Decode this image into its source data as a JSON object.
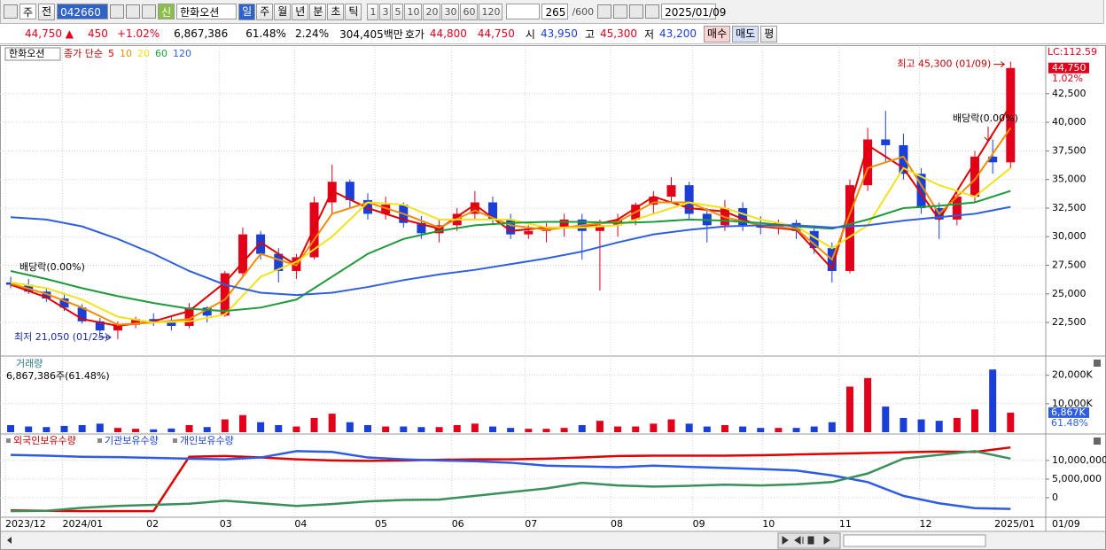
{
  "toolbar": {
    "period_type": "주",
    "prev": "전",
    "code": "042660",
    "new_tag": "신",
    "name": "한화오션",
    "periods": [
      "일",
      "주",
      "월",
      "년",
      "분",
      "초",
      "틱"
    ],
    "intervals": [
      "1",
      "3",
      "5",
      "10",
      "20",
      "30",
      "60",
      "120"
    ],
    "count": "265",
    "max": "/600",
    "date": "2025/01/09"
  },
  "quote_bar": {
    "price": "44,750 ▲",
    "change": "450",
    "change_rate": "+1.02%",
    "volume": "6,867,386",
    "volume_ratio": "61.48%",
    "turnover": "2.24%",
    "amount": "304,405백만",
    "ask_label": "호가",
    "ask": "44,800",
    "bid": "44,750",
    "open_label": "시",
    "open": "43,950",
    "high_label": "고",
    "high": "45,300",
    "low_label": "저",
    "low": "43,200",
    "buy": "매수",
    "sell": "매도",
    "avg": "평"
  },
  "chart_data": [
    {
      "type": "candlestick",
      "name": "한화오션",
      "ma_label": "종가 단순",
      "lc_label": "LC:112.59",
      "last_label": "44,750",
      "last_change": "1.02%",
      "annotations": {
        "high": "최고 45,300 (01/09)",
        "low": "최저 21,050 (01/25)",
        "dividend": [
          "배당락(0.00%)",
          "배당락(0.00%)"
        ]
      },
      "open": [
        26000,
        25800,
        25200,
        24600,
        23800,
        22600,
        21800,
        22300,
        22800,
        22500,
        22200,
        23800,
        23100,
        26800,
        30200,
        28500,
        27000,
        28200,
        33000,
        34800,
        33200,
        32000,
        32800,
        31200,
        30300,
        31000,
        32000,
        33000,
        31500,
        30200,
        30500,
        30800,
        31500,
        30500,
        31000,
        31500,
        32800,
        33500,
        34500,
        32000,
        31000,
        32500,
        31000,
        30800,
        31200,
        30500,
        29000,
        27000,
        34500,
        38500,
        38000,
        35500,
        32500,
        31500,
        33500,
        37000,
        36500
      ],
      "high": [
        26500,
        26300,
        25500,
        25100,
        24100,
        22900,
        22600,
        23000,
        23300,
        23000,
        24200,
        23900,
        27000,
        30800,
        30500,
        29000,
        28500,
        33500,
        36300,
        35000,
        33800,
        33500,
        33000,
        31800,
        31500,
        32500,
        34000,
        33500,
        32000,
        31000,
        31200,
        32000,
        32000,
        31500,
        32000,
        33000,
        34000,
        35200,
        34800,
        32500,
        33200,
        33000,
        31800,
        31500,
        31500,
        31000,
        29500,
        35000,
        39500,
        41000,
        39000,
        36000,
        33000,
        34000,
        37500,
        38500,
        45300
      ],
      "low": [
        25500,
        25000,
        24300,
        23500,
        22400,
        21500,
        21050,
        22000,
        22200,
        21800,
        22000,
        22500,
        23000,
        26500,
        28000,
        26000,
        26300,
        28000,
        32000,
        32500,
        31500,
        31500,
        30800,
        29800,
        29500,
        30500,
        31500,
        31000,
        29800,
        29800,
        29500,
        30000,
        28000,
        25300,
        30000,
        31000,
        32000,
        33000,
        31500,
        29500,
        30500,
        30500,
        30200,
        30200,
        29800,
        28500,
        26000,
        26800,
        34000,
        36500,
        35000,
        32000,
        29800,
        31000,
        33000,
        35500,
        36000
      ],
      "close": [
        25800,
        25200,
        24600,
        23800,
        22600,
        21800,
        22300,
        22800,
        22500,
        22200,
        23800,
        23100,
        26800,
        30200,
        28500,
        27000,
        28200,
        33000,
        34800,
        33200,
        32000,
        32800,
        31200,
        30300,
        31000,
        32000,
        33000,
        31500,
        30200,
        30500,
        30800,
        31500,
        30500,
        31000,
        31500,
        32800,
        33500,
        34500,
        32000,
        31000,
        32500,
        31000,
        30800,
        31200,
        30500,
        29000,
        27000,
        34500,
        38500,
        38000,
        35500,
        32500,
        31500,
        33500,
        37000,
        36500,
        44750
      ],
      "ma_x": [
        0,
        2,
        4,
        6,
        8,
        10,
        12,
        14,
        16,
        18,
        20,
        22,
        24,
        26,
        28,
        30,
        32,
        34,
        36,
        38,
        40,
        42,
        44,
        46,
        48,
        50,
        52,
        54,
        56
      ],
      "series": [
        {
          "name": "5",
          "color": "#e00000",
          "values": [
            25800,
            24700,
            22800,
            22200,
            22600,
            23500,
            26000,
            29500,
            27500,
            34000,
            32500,
            31500,
            30700,
            32800,
            30500,
            30800,
            30800,
            31500,
            33500,
            32500,
            32200,
            30900,
            30600,
            27200,
            38000,
            36000,
            31500,
            36500,
            41500
          ]
        },
        {
          "name": "10",
          "color": "#f08c00",
          "values": [
            25900,
            25000,
            23800,
            22300,
            22500,
            22800,
            24500,
            28500,
            27500,
            32000,
            33000,
            32000,
            30800,
            32300,
            31000,
            30600,
            31000,
            31300,
            33000,
            33000,
            31700,
            31000,
            30700,
            28000,
            36000,
            37000,
            32000,
            35000,
            39500
          ]
        },
        {
          "name": "20",
          "color": "#f2e21a",
          "values": [
            26000,
            25500,
            24500,
            23000,
            22500,
            22600,
            23200,
            26500,
            27800,
            30000,
            33000,
            32800,
            31500,
            31500,
            31500,
            30800,
            30800,
            31000,
            32000,
            33000,
            32500,
            31500,
            30900,
            29000,
            31000,
            36000,
            34500,
            33500,
            36000
          ]
        },
        {
          "name": "60",
          "color": "#1e9a3a",
          "values": [
            27000,
            26300,
            25500,
            24800,
            24200,
            23700,
            23500,
            23800,
            24500,
            26500,
            28500,
            29800,
            30500,
            31000,
            31200,
            31300,
            31300,
            31200,
            31300,
            31500,
            31400,
            31200,
            30900,
            30700,
            31500,
            32500,
            32700,
            33000,
            34000
          ]
        },
        {
          "name": "120",
          "color": "#2f5fe0",
          "values": [
            31700,
            31500,
            30900,
            29800,
            28500,
            27000,
            25800,
            25100,
            24900,
            25100,
            25600,
            26200,
            26700,
            27100,
            27600,
            28100,
            28700,
            29500,
            30200,
            30600,
            30900,
            31000,
            31000,
            30800,
            31000,
            31400,
            31700,
            32000,
            32600
          ]
        }
      ],
      "xlim": [
        -0.35,
        57.97
      ],
      "ylim": [
        19720,
        46590
      ],
      "yticks": [
        {
          "value": 22500,
          "label": "22,500"
        },
        {
          "value": 25000,
          "label": "25,000"
        },
        {
          "value": 27500,
          "label": "27,500"
        },
        {
          "value": 30000,
          "label": "30,000"
        },
        {
          "value": 32500,
          "label": "32,500"
        },
        {
          "value": 35000,
          "label": "35,000"
        },
        {
          "value": 37500,
          "label": "37,500"
        },
        {
          "value": 40000,
          "label": "40,000"
        },
        {
          "value": 42500,
          "label": "42,500"
        }
      ],
      "xticks": [
        {
          "value": -0.3,
          "label": "2023/12"
        },
        {
          "value": 2.9,
          "label": "2024/01"
        },
        {
          "value": 7.6,
          "label": "02"
        },
        {
          "value": 11.7,
          "label": "03"
        },
        {
          "value": 15.9,
          "label": "04"
        },
        {
          "value": 20.4,
          "label": "05"
        },
        {
          "value": 24.7,
          "label": "06"
        },
        {
          "value": 28.8,
          "label": "07"
        },
        {
          "value": 33.6,
          "label": "08"
        },
        {
          "value": 38.2,
          "label": "09"
        },
        {
          "value": 42.1,
          "label": "10"
        },
        {
          "value": 46.4,
          "label": "11"
        },
        {
          "value": 50.9,
          "label": "12"
        },
        {
          "value": 55.1,
          "label": "2025/01"
        }
      ],
      "x_end_label": "01/09",
      "grid": true
    },
    {
      "type": "bar",
      "title": "거래량",
      "subtitle": "6,867,386주(61.48%)",
      "last_label": "6,867K",
      "last_ratio": "61.48%",
      "values": [
        2500,
        2000,
        1800,
        2200,
        2500,
        3000,
        1500,
        1200,
        1000,
        1300,
        2500,
        1800,
        4500,
        6000,
        3500,
        2500,
        2000,
        5000,
        6500,
        3500,
        2500,
        2000,
        2000,
        1800,
        1800,
        2500,
        3000,
        2000,
        1500,
        1200,
        1200,
        1500,
        2500,
        4000,
        2000,
        2000,
        3000,
        4500,
        3000,
        2000,
        2500,
        2000,
        1500,
        1500,
        1500,
        2000,
        3500,
        16000,
        19000,
        9000,
        5000,
        4500,
        4000,
        5000,
        8000,
        22000,
        6867
      ],
      "ylim": [
        0,
        25800
      ],
      "yticks": [
        {
          "value": 10000,
          "label": "10,000K"
        },
        {
          "value": 20000,
          "label": "20,000K"
        }
      ]
    },
    {
      "type": "line",
      "x": [
        0,
        2,
        4,
        6,
        8,
        10,
        12,
        14,
        16,
        18,
        20,
        22,
        24,
        26,
        28,
        30,
        32,
        34,
        36,
        38,
        40,
        42,
        44,
        46,
        48,
        50,
        52,
        54,
        56
      ],
      "series": [
        {
          "name": "외국인보유수량",
          "color": "#e00000",
          "values": [
            -3400000,
            -3500000,
            -3600000,
            -3600000,
            -3600000,
            11000000,
            11200000,
            10800000,
            10300000,
            10000000,
            9900000,
            10000000,
            10200000,
            10300000,
            10300000,
            10500000,
            10800000,
            11200000,
            11300000,
            11300000,
            11300000,
            11400000,
            11600000,
            11800000,
            12000000,
            12200000,
            12400000,
            12300000,
            13500000
          ]
        },
        {
          "name": "기관보유수량",
          "color": "#2d5be3",
          "values": [
            11500000,
            11300000,
            11000000,
            10900000,
            10700000,
            10500000,
            10300000,
            10800000,
            12500000,
            12300000,
            10800000,
            10300000,
            10000000,
            9800000,
            9400000,
            8600000,
            8400000,
            8200000,
            8600000,
            8300000,
            8000000,
            7700000,
            7300000,
            6000000,
            4200000,
            500000,
            -1500000,
            -2800000,
            -3000000
          ]
        },
        {
          "name": "개인보유수량",
          "color": "#3a8f5a",
          "values": [
            -3600000,
            -3500000,
            -2700000,
            -2200000,
            -1900000,
            -1600000,
            -800000,
            -1500000,
            -2200000,
            -1700000,
            -1000000,
            -600000,
            -500000,
            500000,
            1500000,
            2500000,
            4000000,
            3300000,
            3000000,
            3200000,
            3500000,
            3300000,
            3600000,
            4200000,
            6500000,
            10500000,
            11500000,
            12500000,
            10500000
          ]
        }
      ],
      "ylim": [
        -5000000,
        16400000
      ],
      "yticks": [
        {
          "value": 0,
          "label": "0"
        },
        {
          "value": 5000000,
          "label": "5,000,000"
        },
        {
          "value": 10000000,
          "label": "10,000,000"
        }
      ]
    }
  ]
}
